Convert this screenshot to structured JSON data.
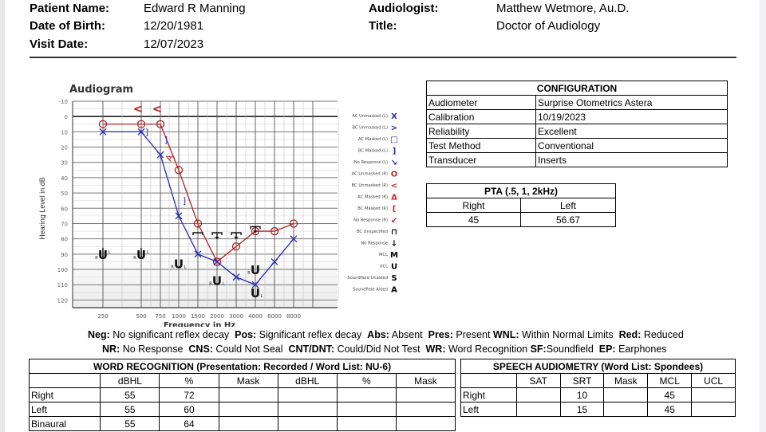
{
  "header": {
    "patient_name_label": "Patient Name:",
    "patient_name": "Edward R Manning",
    "dob_label": "Date of Birth:",
    "dob": "12/20/1981",
    "visit_label": "Visit Date:",
    "visit_date": "12/07/2023",
    "audiologist_label": "Audiologist:",
    "audiologist": "Matthew Wetmore, Au.D.",
    "title_label": "Title:",
    "title": "Doctor of Audiology"
  },
  "chart_data": {
    "type": "line",
    "title": "Audiogram",
    "xlabel": "Frequency in Hz",
    "ylabel": "Hearing Level in dB",
    "x": [
      250,
      500,
      750,
      1000,
      1500,
      2000,
      3000,
      4000,
      6000,
      8000
    ],
    "x_tick_labels": [
      "250",
      "500",
      "750",
      "1000",
      "1500",
      "2000",
      "3000",
      "4000",
      "6000",
      "8000"
    ],
    "y_tick_labels": [
      "-10",
      "0",
      "10",
      "20",
      "30",
      "40",
      "50",
      "60",
      "70",
      "80",
      "90",
      "100",
      "110",
      "120"
    ],
    "ylim": [
      -10,
      125
    ],
    "y_inverted": true,
    "grid": true,
    "legend_position": "right",
    "series": [
      {
        "name": "AC Unmasked (R)",
        "symbol": "O",
        "color": "#b22222",
        "connected": true,
        "values": [
          5,
          5,
          5,
          35,
          70,
          95,
          85,
          75,
          75,
          70
        ]
      },
      {
        "name": "AC Unmasked (L)",
        "symbol": "X",
        "color": "#2b2bb0",
        "connected": true,
        "values": [
          10,
          10,
          25,
          65,
          90,
          95,
          105,
          110,
          95,
          80
        ]
      },
      {
        "name": "BC Unmasked (R)",
        "symbol": "<",
        "color": "#b22222",
        "connected": false,
        "points": [
          {
            "x": 500,
            "y": -5
          },
          {
            "x": 750,
            "y": -5
          }
        ]
      },
      {
        "name": "AC Masked (R)",
        "symbol": "Δ",
        "color": "#b22222",
        "connected": false,
        "points": [
          {
            "x": 850,
            "y": 27
          }
        ]
      },
      {
        "name": "BC Masked (L)",
        "symbol": "]",
        "color": "#2b2bb0",
        "connected": false,
        "points": [
          {
            "x": 500,
            "y": 10
          },
          {
            "x": 750,
            "y": 15
          },
          {
            "x": 1000,
            "y": 55
          }
        ]
      },
      {
        "name": "BC Unspecified / No Response",
        "symbol": "⊤↓",
        "color": "#000000",
        "connected": false,
        "points": [
          {
            "x": 1500,
            "y": 76
          },
          {
            "x": 2000,
            "y": 76
          },
          {
            "x": 3000,
            "y": 76
          },
          {
            "x": 4000,
            "y": 72
          }
        ]
      },
      {
        "name": "UCL",
        "symbol": "U",
        "color": "#000000",
        "connected": false,
        "points": [
          {
            "x": 250,
            "y": 90
          },
          {
            "x": 500,
            "y": 90
          },
          {
            "x": 1000,
            "y": 96
          },
          {
            "x": 2000,
            "y": 107
          },
          {
            "x": 4000,
            "y": 100,
            "ear": "R"
          },
          {
            "x": 4000,
            "y": 115,
            "ear": "L"
          }
        ]
      }
    ]
  },
  "legend": [
    {
      "label": "AC Unmasked (L)",
      "glyph": "X",
      "color": "#2b2bb0"
    },
    {
      "label": "BC Unmasked (L)",
      "glyph": ">",
      "color": "#2b2bb0"
    },
    {
      "label": "AC Masked (L)",
      "glyph": "□",
      "color": "#2b2bb0"
    },
    {
      "label": "BC Masked (L)",
      "glyph": "]",
      "color": "#2b2bb0"
    },
    {
      "label": "No Response (L)",
      "glyph": "↘",
      "color": "#2b2bb0"
    },
    {
      "label": "AC Unmasked (R)",
      "glyph": "O",
      "color": "#c0282a"
    },
    {
      "label": "BC Unmasked (R)",
      "glyph": "<",
      "color": "#c0282a"
    },
    {
      "label": "AC Masked (R)",
      "glyph": "Δ",
      "color": "#c0282a"
    },
    {
      "label": "BC Masked (R)",
      "glyph": "[",
      "color": "#c0282a"
    },
    {
      "label": "No Response (R)",
      "glyph": "↙",
      "color": "#c0282a"
    },
    {
      "label": "BC Unspecified",
      "glyph": "⊓",
      "color": "#000000"
    },
    {
      "label": "No Response",
      "glyph": "↓",
      "color": "#000000"
    },
    {
      "label": "MCL",
      "glyph": "M",
      "color": "#000000"
    },
    {
      "label": "UCL",
      "glyph": "U",
      "color": "#000000"
    },
    {
      "label": "Soundfield Unaided",
      "glyph": "S",
      "color": "#000000"
    },
    {
      "label": "Soundfield Aided",
      "glyph": "A",
      "color": "#000000"
    }
  ],
  "configuration": {
    "title": "CONFIGURATION",
    "rows": [
      {
        "label": "Audiometer",
        "value": "Surprise Otometrics Astera"
      },
      {
        "label": "Calibration",
        "value": "10/19/2023"
      },
      {
        "label": "Reliability",
        "value": "Excellent"
      },
      {
        "label": "Test Method",
        "value": "Conventional"
      },
      {
        "label": "Transducer",
        "value": "Inserts"
      }
    ]
  },
  "pta": {
    "title": "PTA (.5, 1, 2kHz)",
    "right_label": "Right",
    "left_label": "Left",
    "right_value": "45",
    "left_value": "56.67"
  },
  "notes": {
    "line1": [
      {
        "k": "Neg:",
        "v": " No significant reflex decay  "
      },
      {
        "k": "Pos:",
        "v": " Significant reflex decay  "
      },
      {
        "k": "Abs:",
        "v": " Absent  "
      },
      {
        "k": "Pres:",
        "v": " Present "
      },
      {
        "k": "WNL:",
        "v": " Within Normal Limits  "
      },
      {
        "k": "Red:",
        "v": " Reduced"
      }
    ],
    "line2": [
      {
        "k": "NR:",
        "v": " No Response  "
      },
      {
        "k": "CNS:",
        "v": " Could Not Seal  "
      },
      {
        "k": "CNT/DNT:",
        "v": " Could/Did Not Test  "
      },
      {
        "k": "WR:",
        "v": " Word Recognition "
      },
      {
        "k": "SF:",
        "v": "Soundfield  "
      },
      {
        "k": "EP:",
        "v": " Earphones"
      }
    ]
  },
  "word_recognition": {
    "title": "WORD RECOGNITION (Presentation: Recorded / Word List: NU-6)",
    "columns": [
      "",
      "dBHL",
      "%",
      "Mask",
      "dBHL",
      "%",
      "Mask"
    ],
    "rows": [
      [
        "Right",
        "55",
        "72",
        "",
        "",
        "",
        ""
      ],
      [
        "Left",
        "55",
        "60",
        "",
        "",
        "",
        ""
      ],
      [
        "Binaural",
        "55",
        "64",
        "",
        "",
        "",
        ""
      ]
    ]
  },
  "speech_audiometry": {
    "title": "SPEECH AUDIOMETRY (Word List: Spondees)",
    "columns": [
      "",
      "SAT",
      "SRT",
      "Mask",
      "MCL",
      "UCL"
    ],
    "rows": [
      [
        "Right",
        "",
        "10",
        "",
        "45",
        ""
      ],
      [
        "Left",
        "",
        "15",
        "",
        "45",
        ""
      ]
    ]
  }
}
